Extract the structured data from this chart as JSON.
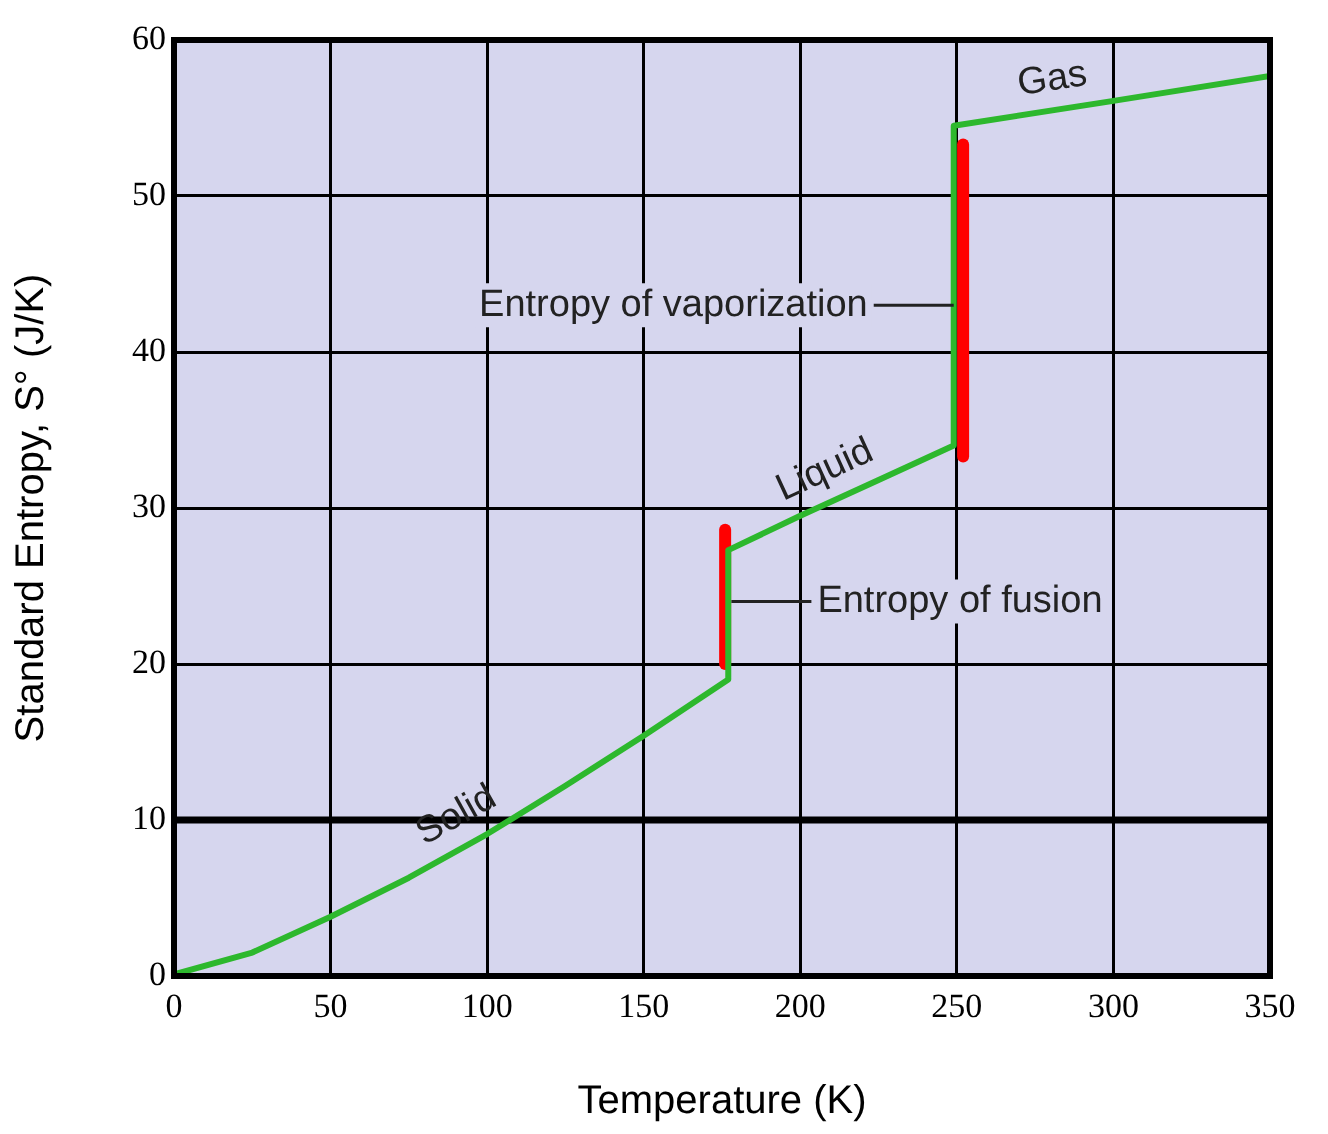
{
  "chart_data": {
    "type": "line",
    "xlabel": "Temperature (K)",
    "ylabel": "Standard Entropy, S° (J/K)",
    "xlim": [
      0,
      350
    ],
    "xticks": [
      0,
      50,
      100,
      150,
      200,
      250,
      300,
      350
    ],
    "ylim": [
      0,
      60
    ],
    "yticks": [
      0,
      10,
      20,
      30,
      40,
      50,
      60
    ],
    "grid": true,
    "marker": "none",
    "line_style": "solid",
    "series": [
      {
        "color": "#2db82d",
        "x": [
          0,
          25,
          50,
          75,
          100,
          125,
          150,
          177,
          177,
          200,
          225,
          249,
          249,
          300,
          350
        ],
        "values": [
          0.1,
          1.5,
          3.8,
          6.3,
          9.1,
          12.2,
          15.4,
          19,
          27.3,
          29.5,
          31.8,
          34,
          54.5,
          56.1,
          57.7
        ]
      },
      {
        "color": "#ff0000",
        "x": [
          176,
          176
        ],
        "values": [
          20,
          28.6
        ]
      },
      {
        "color": "#ff0000",
        "x": [
          252,
          252
        ],
        "values": [
          33.3,
          53.3
        ]
      }
    ],
    "ref_lines": [
      {
        "axis": "y",
        "value": 10,
        "color": "#000000"
      }
    ],
    "annotations": [
      {
        "text": "Solid",
        "x": 95,
        "y": 8.54
      },
      {
        "text": "Liquid",
        "x": 212,
        "y": 30.6
      },
      {
        "text": "Gas",
        "x": 282,
        "y": 55.5
      },
      {
        "text": "Entropy of vaporization",
        "x": 249,
        "y": 43
      },
      {
        "text": "Entropy of fusion",
        "x": 178,
        "y": 24
      }
    ]
  }
}
